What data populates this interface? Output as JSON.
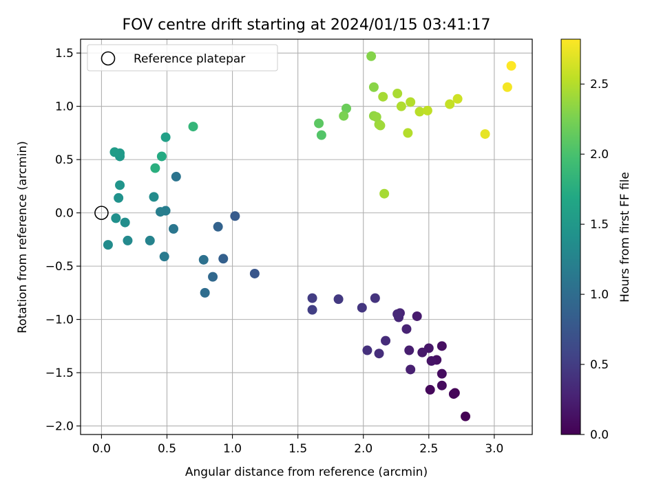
{
  "chart_data": {
    "type": "scatter",
    "title": "FOV centre drift starting at 2024/01/15 03:41:17",
    "xlabel": "Angular distance from reference (arcmin)",
    "ylabel": "Rotation from reference (arcmin)",
    "colorbar_label": "Hours from first FF file",
    "colormap": "viridis",
    "xlim": [
      -0.16,
      3.29
    ],
    "ylim": [
      -2.08,
      1.63
    ],
    "clim": [
      0.0,
      2.82
    ],
    "xticks": [
      0.0,
      0.5,
      1.0,
      1.5,
      2.0,
      2.5,
      3.0
    ],
    "xtick_labels": [
      "0.0",
      "0.5",
      "1.0",
      "1.5",
      "2.0",
      "2.5",
      "3.0"
    ],
    "yticks": [
      -2.0,
      -1.5,
      -1.0,
      -0.5,
      0.0,
      0.5,
      1.0,
      1.5
    ],
    "ytick_labels": [
      "−2.0",
      "−1.5",
      "−1.0",
      "−0.5",
      "0.0",
      "0.5",
      "1.0",
      "1.5"
    ],
    "cticks": [
      0.0,
      0.5,
      1.0,
      1.5,
      2.0,
      2.5
    ],
    "ctick_labels": [
      "0.0",
      "0.5",
      "1.0",
      "1.5",
      "2.0",
      "2.5"
    ],
    "grid": true,
    "legend_location": "top-left",
    "legend": [
      {
        "label": "Reference platepar",
        "marker": "open-circle"
      }
    ],
    "reference_point": {
      "x": 0.0,
      "y": 0.0
    },
    "points": [
      {
        "x": 2.78,
        "y": -1.91,
        "c": 0.0
      },
      {
        "x": 2.7,
        "y": -1.69,
        "c": 0.02
      },
      {
        "x": 2.69,
        "y": -1.7,
        "c": 0.04
      },
      {
        "x": 2.51,
        "y": -1.66,
        "c": 0.06
      },
      {
        "x": 2.6,
        "y": -1.62,
        "c": 0.08
      },
      {
        "x": 2.6,
        "y": -1.51,
        "c": 0.09
      },
      {
        "x": 2.6,
        "y": -1.25,
        "c": 0.11
      },
      {
        "x": 2.56,
        "y": -1.38,
        "c": 0.13
      },
      {
        "x": 2.52,
        "y": -1.39,
        "c": 0.15
      },
      {
        "x": 2.5,
        "y": -1.27,
        "c": 0.17
      },
      {
        "x": 2.45,
        "y": -1.31,
        "c": 0.19
      },
      {
        "x": 2.41,
        "y": -0.97,
        "c": 0.21
      },
      {
        "x": 2.35,
        "y": -1.29,
        "c": 0.23
      },
      {
        "x": 2.36,
        "y": -1.47,
        "c": 0.25
      },
      {
        "x": 2.33,
        "y": -1.09,
        "c": 0.27
      },
      {
        "x": 2.28,
        "y": -0.94,
        "c": 0.29
      },
      {
        "x": 2.27,
        "y": -0.98,
        "c": 0.31
      },
      {
        "x": 2.26,
        "y": -0.95,
        "c": 0.33
      },
      {
        "x": 2.17,
        "y": -1.2,
        "c": 0.35
      },
      {
        "x": 2.12,
        "y": -1.32,
        "c": 0.37
      },
      {
        "x": 2.03,
        "y": -1.29,
        "c": 0.39
      },
      {
        "x": 2.09,
        "y": -0.8,
        "c": 0.42
      },
      {
        "x": 1.99,
        "y": -0.89,
        "c": 0.44
      },
      {
        "x": 1.81,
        "y": -0.81,
        "c": 0.47
      },
      {
        "x": 1.61,
        "y": -0.8,
        "c": 0.5
      },
      {
        "x": 1.61,
        "y": -0.91,
        "c": 0.52
      },
      {
        "x": 1.17,
        "y": -0.57,
        "c": 0.75
      },
      {
        "x": 1.02,
        "y": -0.03,
        "c": 0.8
      },
      {
        "x": 0.93,
        "y": -0.43,
        "c": 0.86
      },
      {
        "x": 0.89,
        "y": -0.13,
        "c": 0.89
      },
      {
        "x": 0.85,
        "y": -0.6,
        "c": 0.95
      },
      {
        "x": 0.79,
        "y": -0.75,
        "c": 1.0
      },
      {
        "x": 0.78,
        "y": -0.44,
        "c": 1.05
      },
      {
        "x": 0.57,
        "y": 0.34,
        "c": 1.08
      },
      {
        "x": 0.55,
        "y": -0.15,
        "c": 1.1
      },
      {
        "x": 0.48,
        "y": -0.41,
        "c": 1.15
      },
      {
        "x": 0.49,
        "y": 0.02,
        "c": 1.18
      },
      {
        "x": 0.45,
        "y": 0.01,
        "c": 1.2
      },
      {
        "x": 0.37,
        "y": -0.26,
        "c": 1.25
      },
      {
        "x": 0.4,
        "y": 0.15,
        "c": 1.35
      },
      {
        "x": 0.05,
        "y": -0.3,
        "c": 1.35
      },
      {
        "x": 0.2,
        "y": -0.26,
        "c": 1.33
      },
      {
        "x": 0.18,
        "y": -0.09,
        "c": 1.38
      },
      {
        "x": 0.11,
        "y": -0.05,
        "c": 1.4
      },
      {
        "x": 0.13,
        "y": 0.14,
        "c": 1.42
      },
      {
        "x": 0.14,
        "y": 0.26,
        "c": 1.46
      },
      {
        "x": 0.14,
        "y": 0.53,
        "c": 1.5
      },
      {
        "x": 0.14,
        "y": 0.56,
        "c": 1.52
      },
      {
        "x": 0.1,
        "y": 0.57,
        "c": 1.55
      },
      {
        "x": 0.49,
        "y": 0.71,
        "c": 1.6
      },
      {
        "x": 0.46,
        "y": 0.53,
        "c": 1.72
      },
      {
        "x": 0.41,
        "y": 0.42,
        "c": 1.77
      },
      {
        "x": 0.7,
        "y": 0.81,
        "c": 1.85
      },
      {
        "x": 1.68,
        "y": 0.73,
        "c": 2.05
      },
      {
        "x": 1.66,
        "y": 0.84,
        "c": 2.1
      },
      {
        "x": 1.87,
        "y": 0.98,
        "c": 2.17
      },
      {
        "x": 1.85,
        "y": 0.91,
        "c": 2.25
      },
      {
        "x": 2.06,
        "y": 1.47,
        "c": 2.3
      },
      {
        "x": 2.08,
        "y": 1.18,
        "c": 2.32
      },
      {
        "x": 2.08,
        "y": 0.91,
        "c": 2.35
      },
      {
        "x": 2.1,
        "y": 0.9,
        "c": 2.37
      },
      {
        "x": 2.12,
        "y": 0.83,
        "c": 2.39
      },
      {
        "x": 2.13,
        "y": 0.82,
        "c": 2.41
      },
      {
        "x": 2.16,
        "y": 0.18,
        "c": 2.44
      },
      {
        "x": 2.15,
        "y": 1.09,
        "c": 2.44
      },
      {
        "x": 2.26,
        "y": 1.12,
        "c": 2.46
      },
      {
        "x": 2.29,
        "y": 1.0,
        "c": 2.48
      },
      {
        "x": 2.34,
        "y": 0.75,
        "c": 2.5
      },
      {
        "x": 2.36,
        "y": 1.04,
        "c": 2.5
      },
      {
        "x": 2.43,
        "y": 0.95,
        "c": 2.52
      },
      {
        "x": 2.49,
        "y": 0.96,
        "c": 2.55
      },
      {
        "x": 2.66,
        "y": 1.02,
        "c": 2.57
      },
      {
        "x": 2.72,
        "y": 1.07,
        "c": 2.61
      },
      {
        "x": 2.93,
        "y": 0.74,
        "c": 2.72
      },
      {
        "x": 3.1,
        "y": 1.18,
        "c": 2.78
      },
      {
        "x": 3.13,
        "y": 1.38,
        "c": 2.82
      }
    ]
  }
}
